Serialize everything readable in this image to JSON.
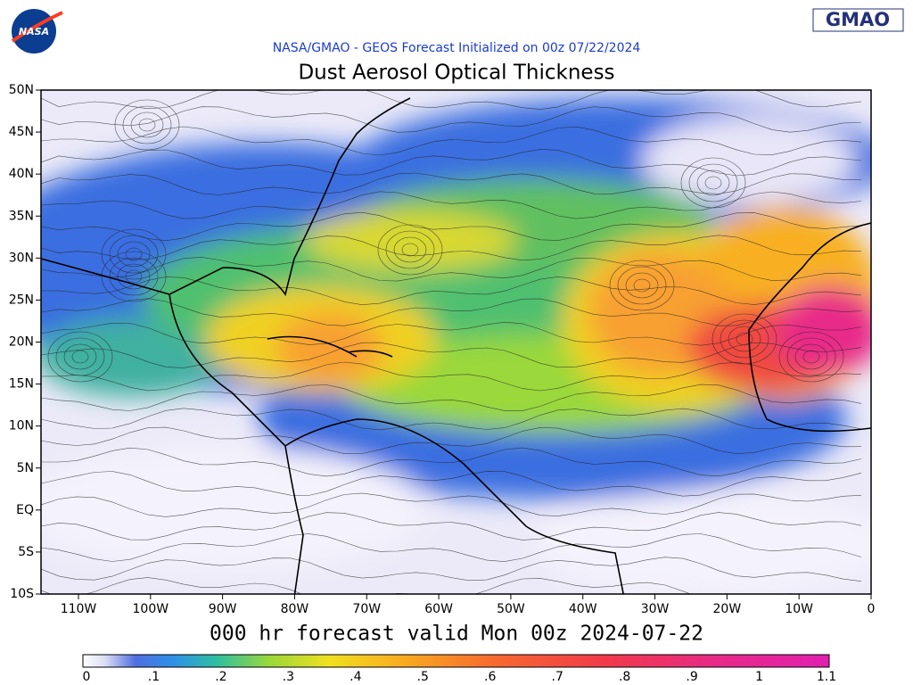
{
  "header": {
    "logo_left": "NASA",
    "logo_right": "GMAO",
    "subtitle": "NASA/GMAO - GEOS Forecast Initialized on 00z 07/22/2024",
    "title": "Dust Aerosol Optical Thickness"
  },
  "map": {
    "lat_labels": [
      "50N",
      "45N",
      "40N",
      "35N",
      "30N",
      "25N",
      "20N",
      "15N",
      "10N",
      "5N",
      "EQ",
      "5S",
      "10S"
    ],
    "lon_labels": [
      "110W",
      "100W",
      "90W",
      "80W",
      "70W",
      "60W",
      "50W",
      "40W",
      "30W",
      "20W",
      "10W",
      "0"
    ]
  },
  "footer": {
    "valid_time": "000 hr forecast valid Mon 00z 2024-07-22"
  },
  "colorbar": {
    "labels": [
      "0",
      ".1",
      ".2",
      ".3",
      ".4",
      ".5",
      ".6",
      ".7",
      ".8",
      ".9",
      "1",
      "1.1"
    ]
  }
}
